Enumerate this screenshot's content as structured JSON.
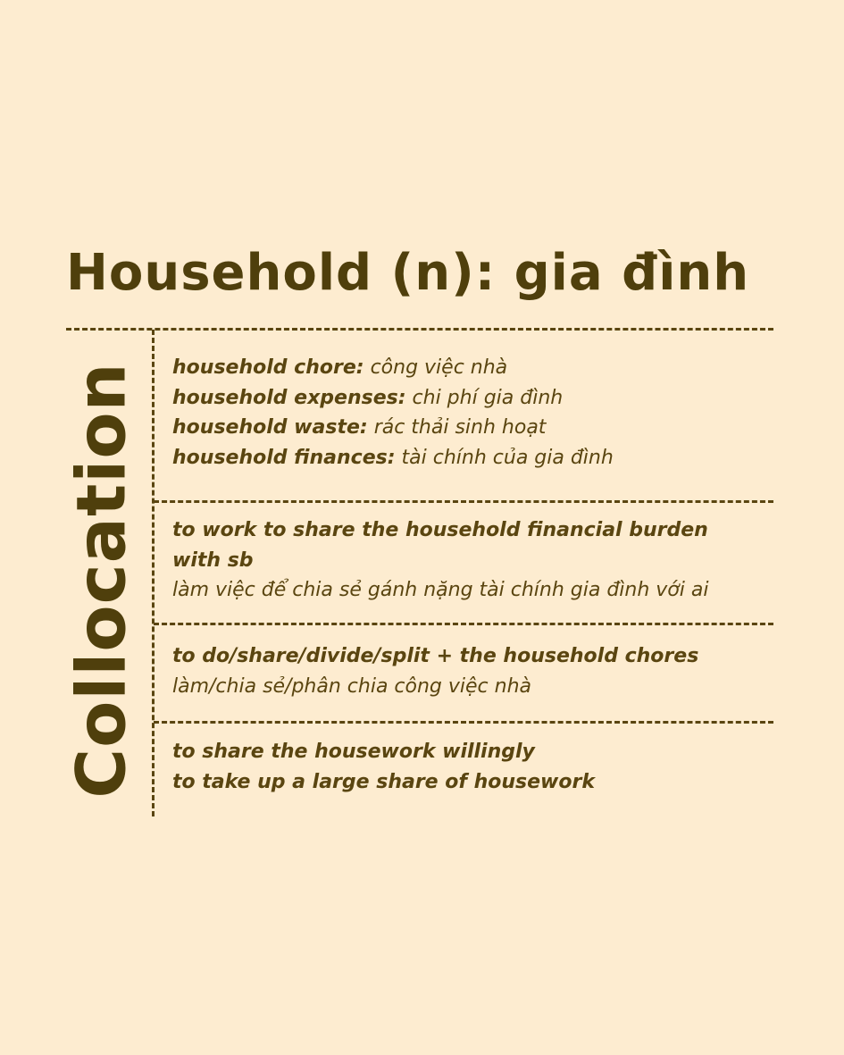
{
  "title": "Household (n): gia đình",
  "side_label": "Collocation",
  "section1": {
    "items": [
      {
        "term": "household chore:",
        "meaning": "công việc nhà"
      },
      {
        "term": "household expenses:",
        "meaning": "chi phí gia đình"
      },
      {
        "term": "household waste:",
        "meaning": "rác thải sinh hoạt"
      },
      {
        "term": "household finances:",
        "meaning": "tài chính của gia đình"
      }
    ]
  },
  "section2": {
    "phrase_line1": "to work to share the household financial burden",
    "phrase_line2": "with sb",
    "meaning": "làm việc để chia sẻ gánh nặng tài chính gia đình với ai"
  },
  "section3": {
    "phrase": "to do/share/divide/split + the household chores",
    "meaning": "làm/chia sẻ/phân chia công việc nhà"
  },
  "section4": {
    "phrases": [
      "to share the housework willingly",
      "to take up a large share of housework"
    ]
  }
}
